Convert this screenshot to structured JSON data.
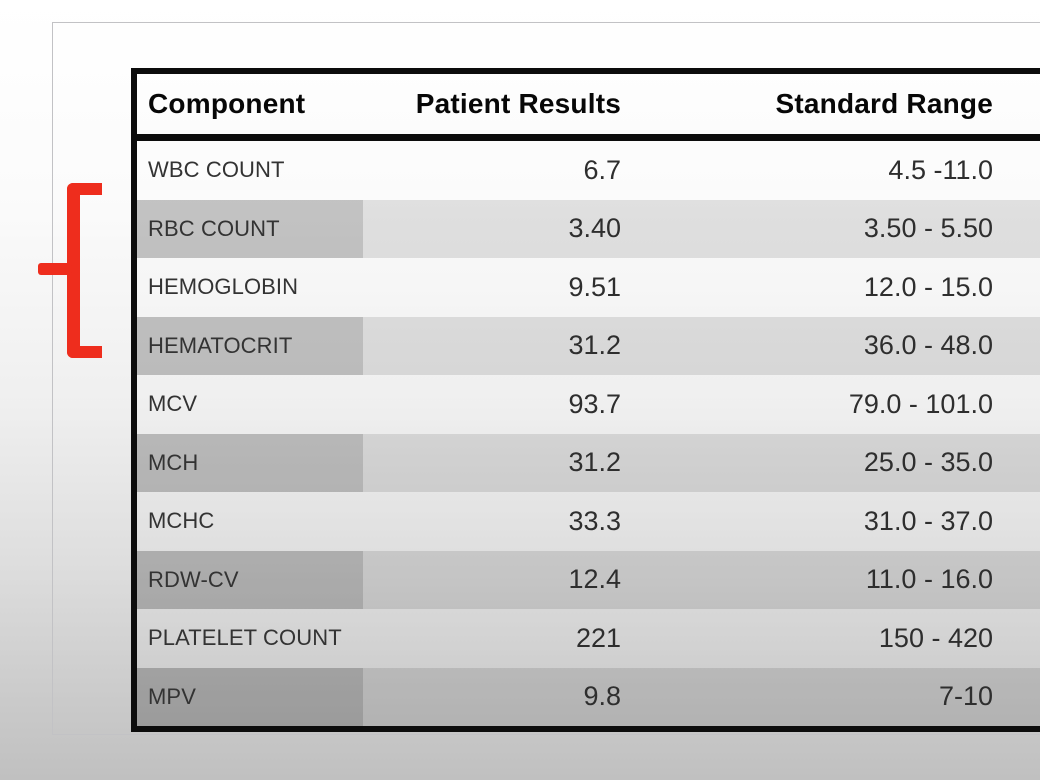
{
  "table": {
    "columns": [
      "Component",
      "Patient Results",
      "Standard Range"
    ],
    "rows": [
      {
        "component": "WBC COUNT",
        "result": "6.7",
        "range": "4.5 -11.0"
      },
      {
        "component": "RBC COUNT",
        "result": "3.40",
        "range": "3.50 - 5.50"
      },
      {
        "component": "HEMOGLOBIN",
        "result": "9.51",
        "range": "12.0 - 15.0"
      },
      {
        "component": "HEMATOCRIT",
        "result": "31.2",
        "range": "36.0 - 48.0"
      },
      {
        "component": "MCV",
        "result": "93.7",
        "range": "79.0 - 101.0"
      },
      {
        "component": "MCH",
        "result": "31.2",
        "range": "25.0 - 35.0"
      },
      {
        "component": "MCHC",
        "result": "33.3",
        "range": "31.0 - 37.0"
      },
      {
        "component": "RDW-CV",
        "result": "12.4",
        "range": "11.0 - 16.0"
      },
      {
        "component": "PLATELET COUNT",
        "result": "221",
        "range": "150 - 420"
      },
      {
        "component": "MPV",
        "result": "9.8",
        "range": "7-10"
      }
    ]
  },
  "annotation": {
    "bracket_color": "#ee2d1d",
    "flagged_components": [
      "RBC COUNT",
      "HEMOGLOBIN",
      "HEMATOCRIT"
    ]
  },
  "colors": {
    "table_border": "#0c0c0c",
    "shaded_component_cell": "#b7b7b7",
    "shaded_row": "#d5d5d5",
    "page_background_top": "#ffffff",
    "page_background_bottom": "#c0c0c0"
  }
}
